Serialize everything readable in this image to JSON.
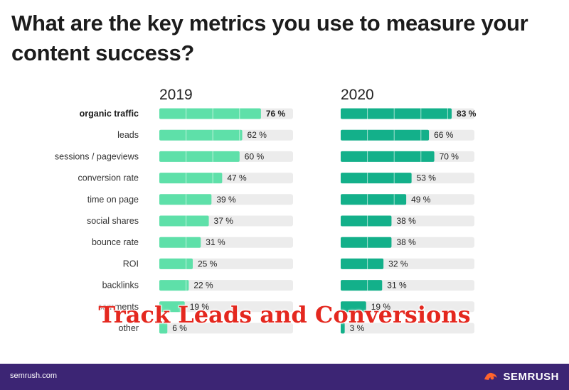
{
  "title": "What are the key metrics you use to measure your content success?",
  "overlay_caption": "Track Leads and Conversions",
  "footer": {
    "url": "semrush.com",
    "brand": "SEMRUSH",
    "logo_icon": "semrush-flame-icon"
  },
  "colors": {
    "bar_2019": "#5ee0a9",
    "bar_2020": "#13b08a",
    "track": "#ececec",
    "footer": "#3c2574",
    "caption": "#e4281f"
  },
  "chart_data": {
    "type": "bar",
    "orientation": "horizontal",
    "categories": [
      "organic traffic",
      "leads",
      "sessions / pageviews",
      "conversion rate",
      "time on page",
      "social shares",
      "bounce rate",
      "ROI",
      "backlinks",
      "comments",
      "other"
    ],
    "series": [
      {
        "name": "2019",
        "values": [
          76,
          62,
          60,
          47,
          39,
          37,
          31,
          25,
          22,
          19,
          6
        ]
      },
      {
        "name": "2020",
        "values": [
          83,
          66,
          70,
          53,
          49,
          38,
          38,
          32,
          31,
          19,
          3
        ]
      }
    ],
    "value_suffix": " %",
    "xlim": [
      0,
      100
    ],
    "highlight_category": "organic traffic"
  }
}
